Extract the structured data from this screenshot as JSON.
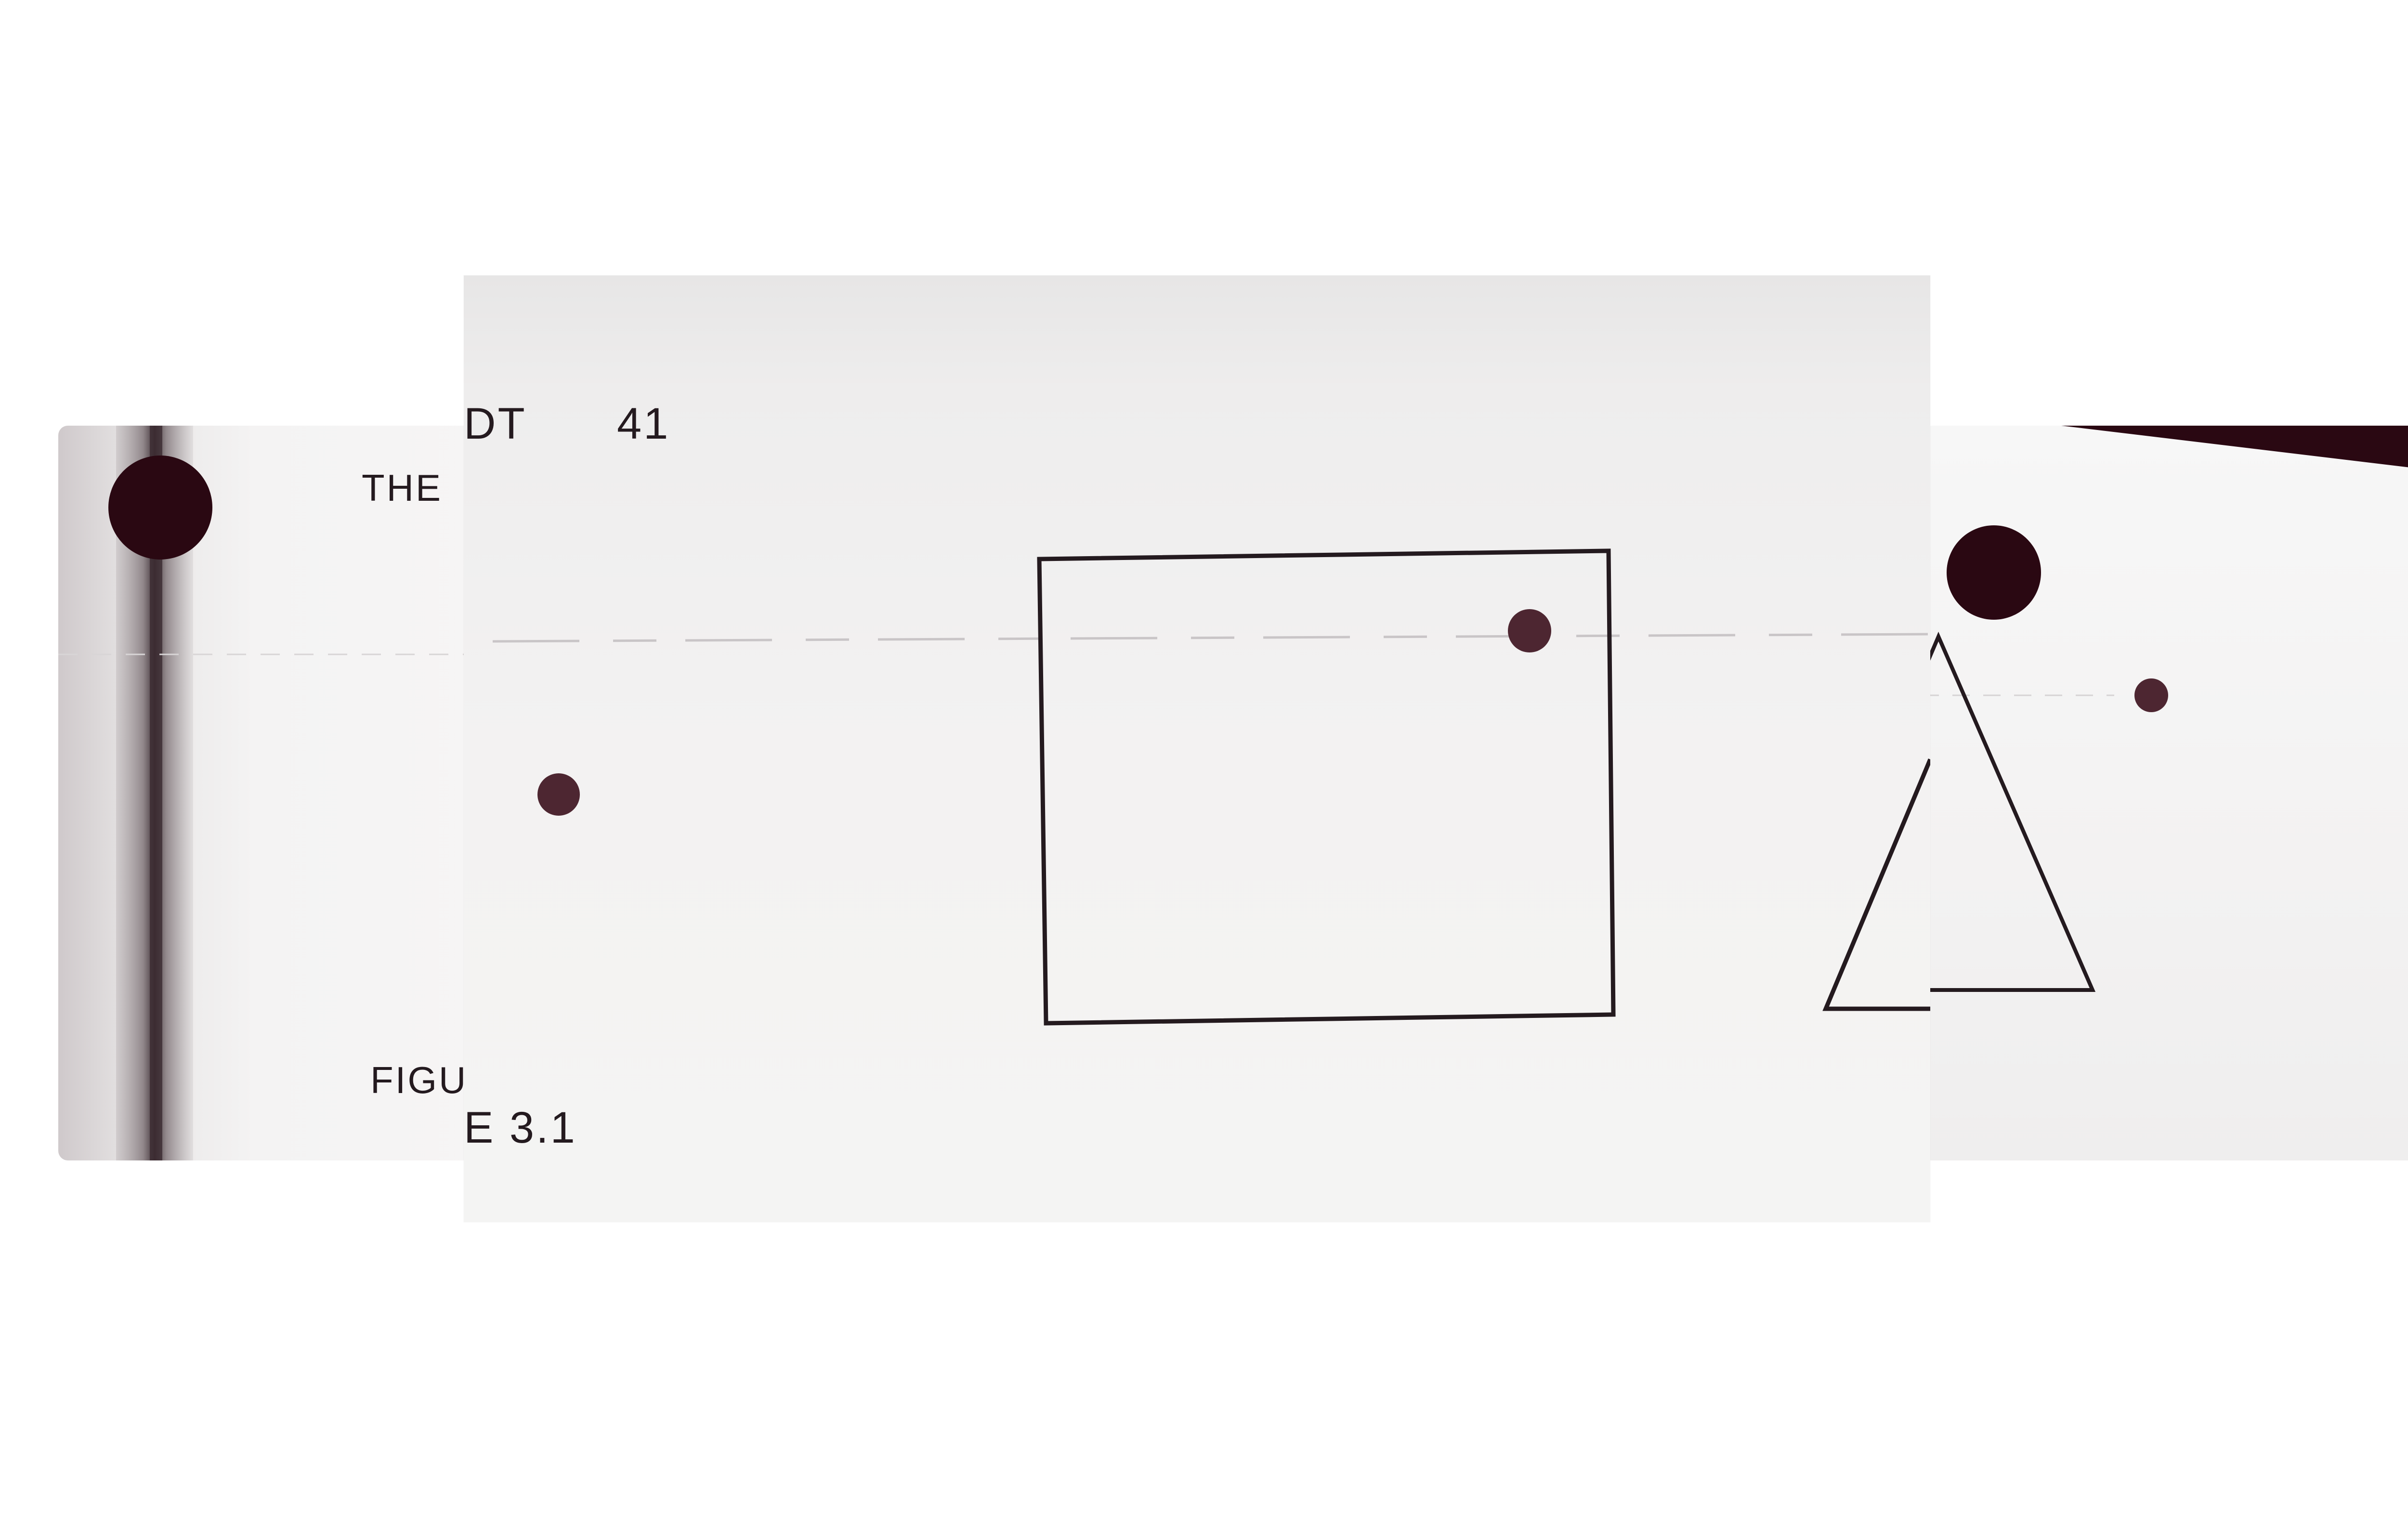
{
  "gallery": {
    "left_page": {
      "heading_fragment": "THE",
      "caption_fragment": "FIGU"
    },
    "center_page": {
      "heading_fragment": "DT",
      "page_number": "41",
      "caption_fragment": "E 3.1"
    },
    "right_page": {}
  },
  "colors": {
    "background": "#ffffff",
    "paper": "#f3f2f2",
    "ink": "#241a1f",
    "dot": "#4d2631",
    "dark_band": "#2a0812"
  },
  "icons": {
    "large_dot": "filled-circle",
    "small_dot": "filled-circle",
    "square": "outlined-square",
    "triangle": "outlined-triangle"
  }
}
